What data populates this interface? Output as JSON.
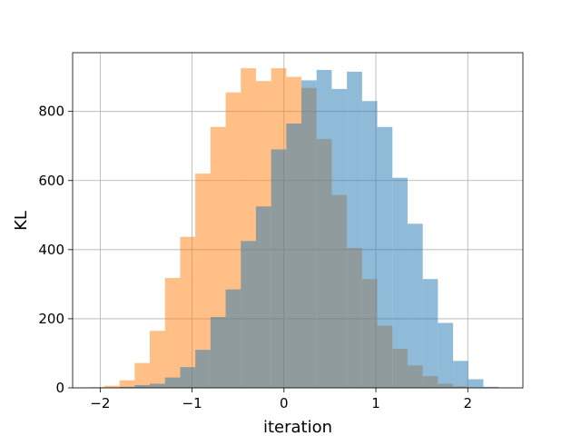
{
  "chart_data": {
    "type": "bar",
    "histogram": true,
    "title": "",
    "xlabel": "iteration",
    "ylabel": "KL",
    "xlim": [
      -2.3,
      2.6
    ],
    "ylim": [
      0,
      970
    ],
    "grid": true,
    "legend": "none",
    "x_ticks": [
      -2,
      -1,
      0,
      1,
      2
    ],
    "x_tick_labels": [
      "−2",
      "−1",
      "0",
      "1",
      "2"
    ],
    "y_ticks": [
      0,
      200,
      400,
      600,
      800
    ],
    "y_tick_labels": [
      "0",
      "200",
      "400",
      "600",
      "800"
    ],
    "bin_width": 0.165,
    "series": [
      {
        "color": "#ff7f0e",
        "opacity": 0.5,
        "bins_start": [
          -2.12,
          -1.955,
          -1.79,
          -1.625,
          -1.46,
          -1.295,
          -1.13,
          -0.965,
          -0.8,
          -0.635,
          -0.47,
          -0.305,
          -0.14,
          0.025,
          0.19,
          0.355,
          0.52,
          0.685,
          0.85,
          1.015,
          1.18,
          1.345,
          1.51,
          1.675,
          1.84
        ],
        "values": [
          2,
          6,
          22,
          72,
          165,
          318,
          437,
          620,
          755,
          855,
          925,
          888,
          925,
          900,
          868,
          720,
          558,
          405,
          315,
          180,
          113,
          65,
          34,
          12,
          4
        ]
      },
      {
        "color": "#1f77b4",
        "opacity": 0.5,
        "bins_start": [
          -1.955,
          -1.79,
          -1.625,
          -1.46,
          -1.295,
          -1.13,
          -0.965,
          -0.8,
          -0.635,
          -0.47,
          -0.305,
          -0.14,
          0.025,
          0.19,
          0.355,
          0.52,
          0.685,
          0.85,
          1.015,
          1.18,
          1.345,
          1.51,
          1.675,
          1.84,
          2.005,
          2.17
        ],
        "values": [
          1,
          3,
          8,
          12,
          30,
          60,
          110,
          205,
          285,
          425,
          525,
          690,
          765,
          890,
          920,
          865,
          915,
          830,
          755,
          608,
          475,
          315,
          188,
          78,
          25,
          3
        ]
      }
    ]
  }
}
